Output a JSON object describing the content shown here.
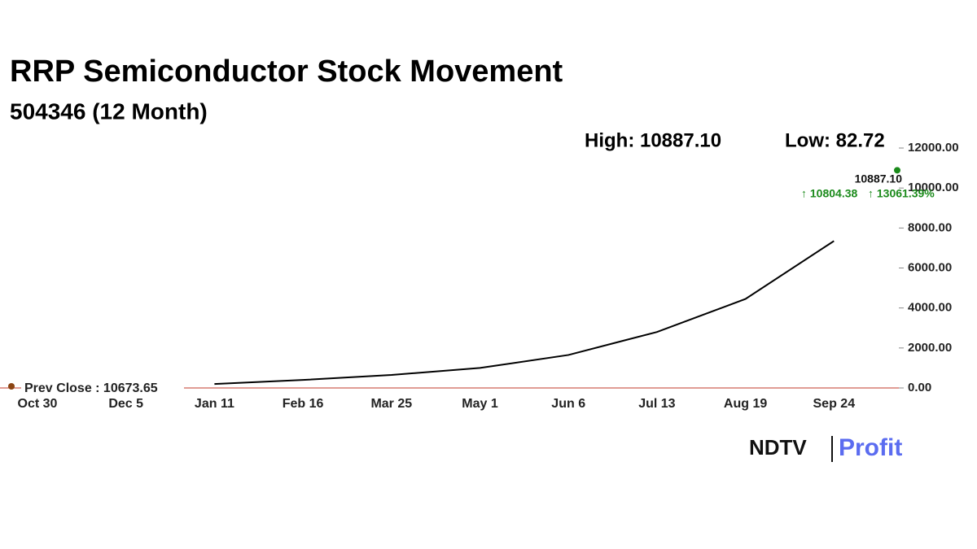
{
  "chart_data": {
    "type": "line",
    "title": "RRP Semiconductor Stock Movement",
    "subtitle": "504346 (12 Month)",
    "high_label": "High: 10887.10",
    "low_label": "Low: 82.72",
    "prev_close_label": "Prev Close : 10673.65",
    "last": {
      "value": 10887.1,
      "label": "10887.10"
    },
    "change": {
      "value": 10804.38,
      "label": "↑ 10804.38"
    },
    "change_pct": {
      "value": 13061.39,
      "label": "↑ 13061.39%"
    },
    "categories": [
      "Oct 30",
      "Dec 5",
      "Jan 11",
      "Feb 16",
      "Mar 25",
      "May 1",
      "Jun 6",
      "Jul 13",
      "Aug 19",
      "Sep 24"
    ],
    "series": [
      {
        "name": "504346",
        "color": "#000000",
        "values": [
          null,
          null,
          200,
          400,
          650,
          1000,
          1650,
          2800,
          4450,
          7350
        ]
      }
    ],
    "ylim": [
      0,
      12000
    ],
    "yticks": [
      {
        "value": 0,
        "label": "0.00"
      },
      {
        "value": 2000,
        "label": "2000.00"
      },
      {
        "value": 4000,
        "label": "4000.00"
      },
      {
        "value": 6000,
        "label": "6000.00"
      },
      {
        "value": 8000,
        "label": "8000.00"
      },
      {
        "value": 10000,
        "label": "10000.00"
      },
      {
        "value": 12000,
        "label": "12000.00"
      }
    ],
    "marker_color": "#1a8a1a",
    "change_color": "#1a8a1a"
  },
  "logo": {
    "left": "NDTV",
    "right": "Profit"
  }
}
